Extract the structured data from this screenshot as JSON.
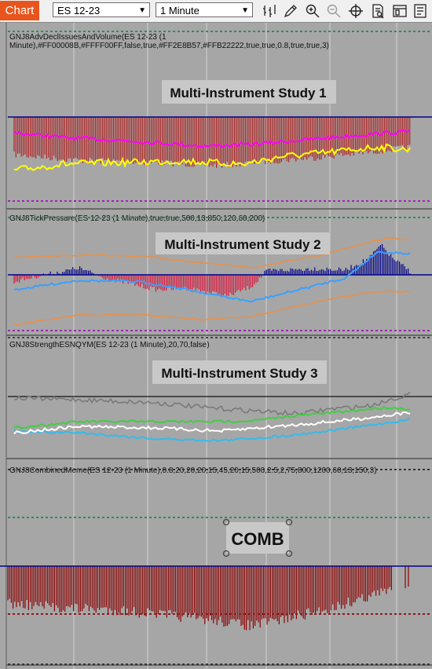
{
  "toolbar": {
    "chart_tab": "Chart",
    "instrument": "ES 12-23",
    "interval": "1 Minute",
    "tools": [
      "bar-type-icon",
      "pencil-icon",
      "zoom-in-icon",
      "zoom-out-icon",
      "crosshair-icon",
      "data-box-icon",
      "properties-icon",
      "strategy-icon"
    ]
  },
  "panels": [
    {
      "indicator": "GNJ8AdvDeclIssuesAndVolume(ES 12-23 (1 Minute),#FF00008B,#FFFF00FF,false,true,#FF2E8B57,#FFB22222,true,true,0.8,true,true,3)",
      "title": "Multi-Instrument Study 1"
    },
    {
      "indicator": "GNJ8TickPressure(ES 12-23 (1 Minute),true,true,500,13,850,120,60,200)",
      "title": "Multi-Instrument Study 2"
    },
    {
      "indicator": "GNJ8StrengthESNQYM(ES 12-23 (1 Minute),20,70,false)",
      "title": "Multi-Instrument Study 3"
    },
    {
      "indicator": "GNJ8CombinedMeme(ES 12-23 (1 Minute),0.8,20,20,20,15,45,20,15,500,2.5,2,75,800,1200,60,13,150,3)",
      "title": "COMB"
    }
  ],
  "colors": {
    "zero_line": "#00008b",
    "red_histogram": "#b22222",
    "dark_red_histogram": "#8b0000",
    "blue_histogram": "#00008b",
    "magenta": "#ff00ff",
    "yellow": "#ffff00",
    "orange": "#e8904a",
    "light_blue": "#3aa0ff",
    "green": "#44cc44",
    "white": "#ffffff",
    "cyan": "#33bbee",
    "gray": "#7a7a7a",
    "green_dots": "#2e8b57",
    "purple_dots": "#9c27b0",
    "darkred_dots": "#8b1a1a"
  }
}
